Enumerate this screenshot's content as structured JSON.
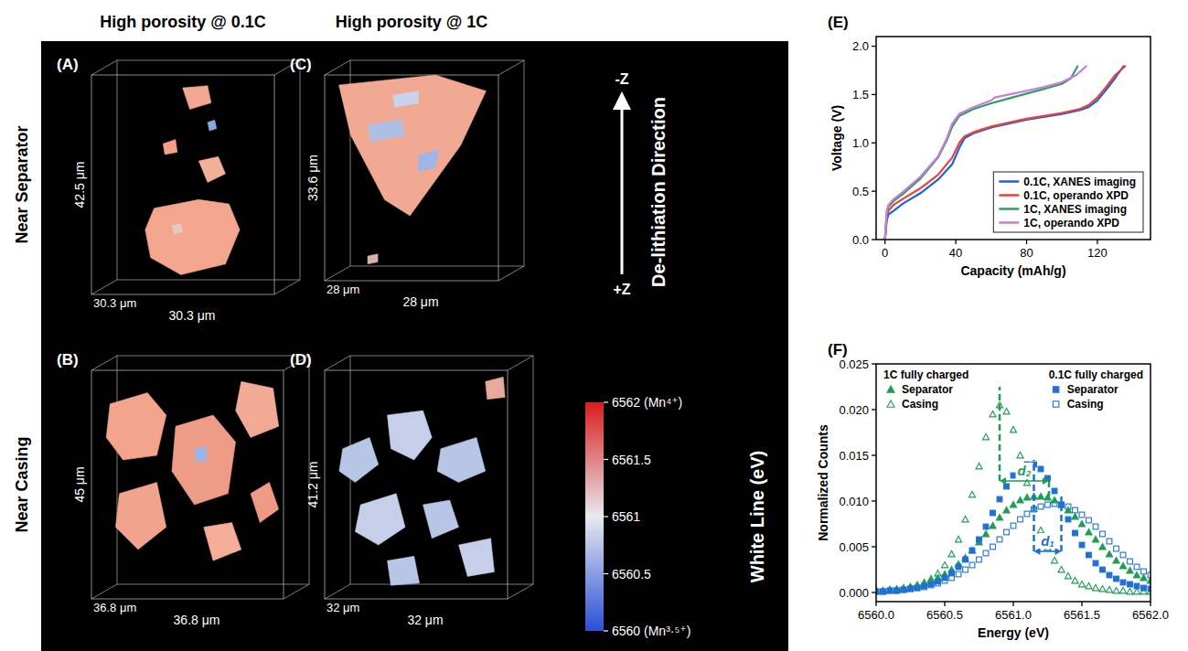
{
  "column_headers": [
    "High porosity @ 0.1C",
    "High porosity @ 1C"
  ],
  "row_headers": [
    "Near Separator",
    "Near Casing"
  ],
  "image_panels": [
    {
      "letter": "(A)",
      "height": "42.5 μm",
      "depth": "30.3 μm",
      "width": "30.3 μm"
    },
    {
      "letter": "(B)",
      "height": "45 μm",
      "depth": "36.8 μm",
      "width": "36.8 μm"
    },
    {
      "letter": "(C)",
      "height": "33.6 μm",
      "depth": "28 μm",
      "width": "28 μm"
    },
    {
      "letter": "(D)",
      "height": "41.2 μm",
      "depth": "32 μm",
      "width": "32 μm"
    }
  ],
  "arrow": {
    "top": "-Z",
    "bottom": "+Z",
    "label": "De-lithiation Direction"
  },
  "colorbar": {
    "title": "White Line (eV)",
    "range": [
      6560,
      6562
    ],
    "ticks": [
      {
        "value": 6562,
        "label": "6562 (Mn⁴⁺)"
      },
      6561.5,
      6561,
      6560.5,
      {
        "value": 6560,
        "label": "6560 (Mn³·⁵⁺)"
      }
    ],
    "colors": [
      "#2a4fd6",
      "#e9e9f0",
      "#d81e1e"
    ]
  },
  "chart_data": [
    {
      "type": "line",
      "panel_label": "(E)",
      "x_label": "Capacity (mAh/g)",
      "y_label": "Voltage (V)",
      "xlim": [
        -5,
        150
      ],
      "ylim": [
        0,
        2.1
      ],
      "xticks": [
        0,
        40,
        80,
        120
      ],
      "yticks": [
        {
          "value": 0,
          "label": "0.0"
        },
        0.5,
        {
          "value": 1,
          "label": "1.0"
        },
        1.5,
        {
          "value": 2,
          "label": "2.0"
        }
      ],
      "legend": "lower right",
      "series": [
        {
          "name": "0.1C, XANES imaging",
          "color": "#1f5fe0",
          "x": [
            0,
            1,
            2,
            5,
            10,
            20,
            30,
            38,
            42,
            45,
            50,
            60,
            80,
            100,
            110,
            115,
            120,
            125,
            130,
            135
          ],
          "values": [
            0,
            0.2,
            0.26,
            0.3,
            0.37,
            0.48,
            0.62,
            0.78,
            0.95,
            1.05,
            1.1,
            1.16,
            1.24,
            1.3,
            1.34,
            1.37,
            1.44,
            1.55,
            1.67,
            1.8
          ]
        },
        {
          "name": "0.1C, operando XPD",
          "color": "#e8423a",
          "x": [
            0,
            1,
            2,
            5,
            10,
            20,
            30,
            38,
            42,
            45,
            50,
            60,
            80,
            100,
            110,
            115,
            120,
            125,
            130,
            136
          ],
          "values": [
            0,
            0.25,
            0.3,
            0.36,
            0.42,
            0.53,
            0.67,
            0.85,
            1.0,
            1.07,
            1.11,
            1.17,
            1.25,
            1.31,
            1.35,
            1.39,
            1.47,
            1.58,
            1.7,
            1.8
          ]
        },
        {
          "name": "1C, XANES imaging",
          "color": "#2e9f5c",
          "x": [
            0,
            1,
            2,
            5,
            10,
            20,
            30,
            35,
            38,
            42,
            50,
            60,
            70,
            80,
            90,
            100,
            105,
            109
          ],
          "values": [
            0,
            0.28,
            0.34,
            0.4,
            0.47,
            0.63,
            0.85,
            1.03,
            1.17,
            1.28,
            1.35,
            1.41,
            1.46,
            1.51,
            1.56,
            1.61,
            1.67,
            1.8
          ]
        },
        {
          "name": "1C, operando XPD",
          "color": "#c77de0",
          "x": [
            0,
            1,
            2,
            5,
            10,
            20,
            30,
            35,
            38,
            42,
            50,
            60,
            62,
            70,
            80,
            90,
            100,
            108,
            114
          ],
          "values": [
            0,
            0.3,
            0.36,
            0.42,
            0.49,
            0.65,
            0.86,
            1.05,
            1.2,
            1.3,
            1.37,
            1.44,
            1.47,
            1.5,
            1.54,
            1.58,
            1.63,
            1.7,
            1.8
          ]
        }
      ]
    },
    {
      "type": "scatter",
      "panel_label": "(F)",
      "x_label": "Energy (eV)",
      "y_label": "Normalized Counts",
      "xlim": [
        6560,
        6562
      ],
      "ylim": [
        -0.001,
        0.025
      ],
      "xticks": [
        {
          "value": 6560,
          "label": "6560.0"
        },
        6560.5,
        {
          "value": 6561,
          "label": "6561.0"
        },
        6561.5,
        {
          "value": 6562,
          "label": "6562.0"
        }
      ],
      "yticks": [
        {
          "value": 0,
          "label": "0.000"
        },
        0.005,
        {
          "value": 0.01,
          "label": "0.010"
        },
        0.015,
        {
          "value": 0.02,
          "label": "0.020"
        },
        0.025
      ],
      "legend": "top",
      "legend_titles": [
        "1C fully charged",
        "0.1C fully charged"
      ],
      "x": [
        6560,
        6560.05,
        6560.1,
        6560.15,
        6560.2,
        6560.25,
        6560.3,
        6560.35,
        6560.4,
        6560.45,
        6560.5,
        6560.55,
        6560.6,
        6560.65,
        6560.7,
        6560.75,
        6560.8,
        6560.85,
        6560.9,
        6560.95,
        6561,
        6561.05,
        6561.1,
        6561.15,
        6561.2,
        6561.25,
        6561.3,
        6561.35,
        6561.4,
        6561.45,
        6561.5,
        6561.55,
        6561.6,
        6561.65,
        6561.7,
        6561.75,
        6561.8,
        6561.85,
        6561.9,
        6561.95,
        6562
      ],
      "series": [
        {
          "name": "Separator",
          "color": "#1e9e55",
          "marker": "triangle",
          "values": [
            0.0002,
            0.0002,
            0.0003,
            0.0004,
            0.0005,
            0.0006,
            0.0008,
            0.001,
            0.0013,
            0.0016,
            0.002,
            0.0025,
            0.0031,
            0.0038,
            0.0046,
            0.0055,
            0.0064,
            0.0073,
            0.0082,
            0.009,
            0.0096,
            0.0101,
            0.0104,
            0.0105,
            0.0105,
            0.0104,
            0.0101,
            0.0096,
            0.009,
            0.0083,
            0.0075,
            0.0066,
            0.0058,
            0.005,
            0.0042,
            0.0035,
            0.0029,
            0.0024,
            0.0019,
            0.0016,
            0.0013
          ]
        },
        {
          "name": "Casing",
          "color": "#1e9e55",
          "marker": "triangle-open",
          "values": [
            0.0002,
            0.0002,
            0.0003,
            0.0003,
            0.0004,
            0.0006,
            0.0008,
            0.0011,
            0.0015,
            0.0021,
            0.003,
            0.0042,
            0.0058,
            0.008,
            0.0107,
            0.0138,
            0.017,
            0.0195,
            0.0205,
            0.0198,
            0.0178,
            0.015,
            0.012,
            0.0092,
            0.0068,
            0.0049,
            0.0035,
            0.0025,
            0.0018,
            0.0013,
            0.0009,
            0.0007,
            0.0005,
            0.0004,
            0.0003,
            0.0002,
            0.0002,
            0.0001,
            0.0001,
            0.0001,
            0.0001
          ]
        },
        {
          "name": "Separator",
          "color": "#1f6fd6",
          "marker": "square",
          "values": [
            0.0001,
            0.0001,
            0.0002,
            0.0002,
            0.0003,
            0.0004,
            0.0005,
            0.0007,
            0.0009,
            0.0012,
            0.0016,
            0.0021,
            0.0028,
            0.0036,
            0.0046,
            0.0058,
            0.0072,
            0.0087,
            0.0102,
            0.0116,
            0.0128,
            0.0136,
            0.014,
            0.014,
            0.0135,
            0.0125,
            0.0111,
            0.0096,
            0.008,
            0.0065,
            0.0052,
            0.0041,
            0.0032,
            0.0025,
            0.0019,
            0.0015,
            0.0011,
            0.0009,
            0.0007,
            0.0005,
            0.0004
          ]
        },
        {
          "name": "Casing",
          "color": "#1f6fd6",
          "marker": "square-open",
          "values": [
            0.0001,
            0.0001,
            0.0002,
            0.0002,
            0.0003,
            0.0004,
            0.0005,
            0.0006,
            0.0008,
            0.001,
            0.0013,
            0.0016,
            0.002,
            0.0025,
            0.003,
            0.0036,
            0.0043,
            0.005,
            0.0058,
            0.0066,
            0.0073,
            0.008,
            0.0086,
            0.0091,
            0.0094,
            0.0096,
            0.0097,
            0.0096,
            0.0094,
            0.009,
            0.0085,
            0.0079,
            0.0072,
            0.0064,
            0.0056,
            0.0048,
            0.0041,
            0.0034,
            0.0028,
            0.0023,
            0.0019
          ]
        }
      ],
      "annotations": [
        {
          "label": "d₂",
          "x1": 6560.9,
          "x2": 6561.26,
          "y": 0.0122,
          "y_ends": [
            0.0225,
            0.0105
          ],
          "color": "#1e9e55"
        },
        {
          "label": "d₁",
          "x1": 6561.15,
          "x2": 6561.35,
          "y": 0.0045,
          "y_ends": [
            0.0145,
            0.0105
          ],
          "color": "#1f6fd6"
        }
      ]
    }
  ]
}
